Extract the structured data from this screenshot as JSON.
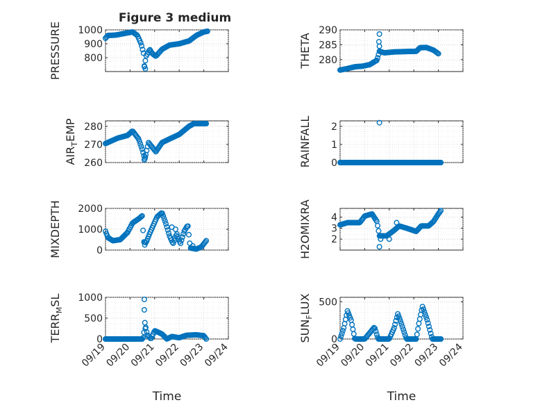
{
  "figure": {
    "title": "Figure 3 medium",
    "marker_color": "#0072BD"
  },
  "chart_data": [
    {
      "type": "scatter",
      "id": "pressure",
      "title": "Figure 3 medium",
      "ylabel": "PRESSURE",
      "ylabel_sub": "",
      "ylim": [
        700,
        1000
      ],
      "yticks": [
        800,
        900,
        1000
      ],
      "yticklabels": [
        "800",
        "900",
        "1000"
      ],
      "xlim": [
        0,
        5
      ],
      "xticks": [
        0,
        1,
        2,
        3,
        4,
        5
      ],
      "xticklabels": [
        "09/19",
        "09/20",
        "09/21",
        "09/22",
        "09/23",
        "09/24"
      ],
      "xlabel": "",
      "grid": true,
      "anchors": [
        [
          0,
          940
        ],
        [
          0.1,
          960
        ],
        [
          0.4,
          962
        ],
        [
          0.8,
          975
        ],
        [
          1.1,
          985
        ],
        [
          1.3,
          960
        ],
        [
          1.45,
          900
        ],
        [
          1.55,
          830
        ],
        [
          1.58,
          730
        ],
        [
          1.65,
          810
        ],
        [
          1.8,
          860
        ],
        [
          1.9,
          830
        ],
        [
          2.05,
          810
        ],
        [
          2.3,
          860
        ],
        [
          2.6,
          890
        ],
        [
          3.0,
          900
        ],
        [
          3.4,
          920
        ],
        [
          3.7,
          960
        ],
        [
          4.0,
          985
        ],
        [
          4.15,
          990
        ]
      ],
      "y_extra": [
        [
          1.58,
          740
        ],
        [
          1.62,
          720
        ]
      ]
    },
    {
      "type": "scatter",
      "id": "theta",
      "ylabel": "THETA",
      "ylabel_sub": "",
      "ylim": [
        276,
        290
      ],
      "yticks": [
        280,
        285,
        290
      ],
      "yticklabels": [
        "280",
        "285",
        "290"
      ],
      "xlim": [
        0,
        5
      ],
      "xticks": [
        0,
        1,
        2,
        3,
        4,
        5
      ],
      "xticklabels": [
        "09/19",
        "09/20",
        "09/21",
        "09/22",
        "09/23",
        "09/24"
      ],
      "xlabel": "",
      "grid": true,
      "anchors": [
        [
          0,
          276.5
        ],
        [
          0.3,
          277
        ],
        [
          0.6,
          277.6
        ],
        [
          0.9,
          277.8
        ],
        [
          1.2,
          278.3
        ],
        [
          1.5,
          279.8
        ],
        [
          1.6,
          282.8
        ],
        [
          1.8,
          282.3
        ],
        [
          2.2,
          282.6
        ],
        [
          2.6,
          282.7
        ],
        [
          3.1,
          282.8
        ],
        [
          3.25,
          284
        ],
        [
          3.5,
          284.1
        ],
        [
          3.8,
          283.2
        ],
        [
          4.0,
          282
        ]
      ],
      "y_extra": [
        [
          1.58,
          286
        ],
        [
          1.6,
          288.6
        ],
        [
          1.6,
          284.5
        ]
      ]
    },
    {
      "type": "scatter",
      "id": "airtemp",
      "ylabel": "AIR",
      "ylabel_sub": "T",
      "ylabel_rest": "EMP",
      "ylim": [
        260,
        283
      ],
      "yticks": [
        260,
        270,
        280
      ],
      "yticklabels": [
        "260",
        "270",
        "280"
      ],
      "xlim": [
        0,
        5
      ],
      "xticks": [
        0,
        1,
        2,
        3,
        4,
        5
      ],
      "xticklabels": [
        "09/19",
        "09/20",
        "09/21",
        "09/22",
        "09/23",
        "09/24"
      ],
      "xlabel": "",
      "grid": true,
      "anchors": [
        [
          0,
          270.5
        ],
        [
          0.5,
          273.5
        ],
        [
          0.9,
          275
        ],
        [
          1.1,
          277.5
        ],
        [
          1.35,
          273
        ],
        [
          1.5,
          267
        ],
        [
          1.6,
          262
        ],
        [
          1.75,
          271
        ],
        [
          2.05,
          266
        ],
        [
          2.3,
          271
        ],
        [
          2.6,
          273
        ],
        [
          3.0,
          275.5
        ],
        [
          3.4,
          280
        ],
        [
          3.6,
          281.5
        ],
        [
          4.1,
          281.5
        ]
      ],
      "y_extra": [
        [
          1.58,
          261.5
        ],
        [
          1.62,
          263
        ]
      ]
    },
    {
      "type": "scatter",
      "id": "rainfall",
      "ylabel": "RAINFALL",
      "ylabel_sub": "",
      "ylim": [
        0,
        2.3
      ],
      "yticks": [
        0,
        1,
        2
      ],
      "yticklabels": [
        "0",
        "1",
        "2"
      ],
      "xlim": [
        0,
        5
      ],
      "xticks": [
        0,
        1,
        2,
        3,
        4,
        5
      ],
      "xticklabels": [
        "09/19",
        "09/20",
        "09/21",
        "09/22",
        "09/23",
        "09/24"
      ],
      "xlabel": "",
      "grid": true,
      "anchors": [
        [
          0,
          0
        ],
        [
          4.1,
          0
        ]
      ],
      "y_extra": [
        [
          1.6,
          2.2
        ]
      ]
    },
    {
      "type": "scatter",
      "id": "mixdepth",
      "ylabel": "MIXDEPTH",
      "ylabel_sub": "",
      "ylim": [
        0,
        2000
      ],
      "yticks": [
        0,
        1000,
        2000
      ],
      "yticklabels": [
        "0",
        "1000",
        "2000"
      ],
      "xlim": [
        0,
        5
      ],
      "xticks": [
        0,
        1,
        2,
        3,
        4,
        5
      ],
      "xticklabels": [
        "09/19",
        "09/20",
        "09/21",
        "09/22",
        "09/23",
        "09/24"
      ],
      "xlabel": "",
      "grid": true,
      "anchors": [
        [
          0,
          900
        ],
        [
          0.1,
          600
        ],
        [
          0.3,
          450
        ],
        [
          0.6,
          500
        ],
        [
          0.9,
          850
        ],
        [
          1.1,
          1300
        ],
        [
          1.35,
          1500
        ],
        [
          1.5,
          1650
        ],
        [
          1.55,
          400
        ],
        [
          1.65,
          350
        ],
        [
          1.8,
          800
        ],
        [
          2.1,
          1600
        ],
        [
          2.3,
          1800
        ],
        [
          2.45,
          1300
        ],
        [
          2.6,
          700
        ],
        [
          2.75,
          300
        ],
        [
          2.9,
          800
        ],
        [
          3.05,
          300
        ],
        [
          3.2,
          900
        ],
        [
          3.35,
          1200
        ],
        [
          3.45,
          100
        ],
        [
          3.7,
          50
        ],
        [
          3.9,
          150
        ],
        [
          4.1,
          450
        ]
      ],
      "y_extra": [
        [
          2.7,
          1100
        ],
        [
          2.85,
          1000
        ],
        [
          3.55,
          200
        ],
        [
          1.6,
          250
        ]
      ]
    },
    {
      "type": "scatter",
      "id": "h2omixra",
      "ylabel": "H2OMIXRA",
      "ylabel_sub": "",
      "ylim": [
        1,
        4.8
      ],
      "yticks": [
        2,
        3,
        4
      ],
      "yticklabels": [
        "2",
        "3",
        "4"
      ],
      "xlim": [
        0,
        5
      ],
      "xticks": [
        0,
        1,
        2,
        3,
        4,
        5
      ],
      "xticklabels": [
        "09/19",
        "09/20",
        "09/21",
        "09/22",
        "09/23",
        "09/24"
      ],
      "xlabel": "",
      "grid": true,
      "anchors": [
        [
          0,
          3.3
        ],
        [
          0.3,
          3.5
        ],
        [
          0.8,
          3.5
        ],
        [
          1.0,
          4.1
        ],
        [
          1.3,
          4.3
        ],
        [
          1.5,
          3.6
        ],
        [
          1.6,
          2.3
        ],
        [
          1.9,
          2.3
        ],
        [
          2.2,
          2.8
        ],
        [
          2.4,
          3.2
        ],
        [
          2.7,
          3.0
        ],
        [
          3.1,
          2.7
        ],
        [
          3.3,
          3.2
        ],
        [
          3.6,
          3.2
        ],
        [
          3.8,
          3.6
        ],
        [
          4.0,
          4.3
        ],
        [
          4.1,
          4.6
        ]
      ],
      "y_extra": [
        [
          1.6,
          1.3
        ],
        [
          1.65,
          2.0
        ],
        [
          2.0,
          2.0
        ],
        [
          2.3,
          3.5
        ]
      ]
    },
    {
      "type": "scatter",
      "id": "terrmsl",
      "ylabel": "TERR",
      "ylabel_sub": "M",
      "ylabel_rest": "SL",
      "ylim": [
        0,
        1000
      ],
      "yticks": [
        0,
        500,
        1000
      ],
      "yticklabels": [
        "0",
        "500",
        "1000"
      ],
      "xlim": [
        0,
        5
      ],
      "xticks": [
        0,
        1,
        2,
        3,
        4,
        5
      ],
      "xticklabels": [
        "09/19",
        "09/20",
        "09/21",
        "09/22",
        "09/23",
        "09/24"
      ],
      "xlabel": "Time",
      "grid": true,
      "anchors": [
        [
          0,
          0
        ],
        [
          1.5,
          0
        ],
        [
          1.55,
          50
        ],
        [
          1.6,
          400
        ],
        [
          1.7,
          100
        ],
        [
          1.85,
          0
        ],
        [
          2.0,
          200
        ],
        [
          2.3,
          120
        ],
        [
          2.5,
          0
        ],
        [
          2.7,
          60
        ],
        [
          3.0,
          30
        ],
        [
          3.3,
          90
        ],
        [
          3.7,
          100
        ],
        [
          4.0,
          80
        ],
        [
          4.1,
          0
        ]
      ],
      "y_extra": [
        [
          1.58,
          950
        ],
        [
          1.58,
          700
        ],
        [
          1.62,
          250
        ]
      ]
    },
    {
      "type": "scatter",
      "id": "sunflux",
      "ylabel": "SUN",
      "ylabel_sub": "F",
      "ylabel_rest": "LUX",
      "ylim": [
        0,
        560
      ],
      "yticks": [
        0,
        500
      ],
      "yticklabels": [
        "0",
        "500"
      ],
      "xlim": [
        0,
        5
      ],
      "xticks": [
        0,
        1,
        2,
        3,
        4,
        5
      ],
      "xticklabels": [
        "09/19",
        "09/20",
        "09/21",
        "09/22",
        "09/23",
        "09/24"
      ],
      "xlabel": "Time",
      "grid": true,
      "anchors": [
        [
          0,
          0
        ],
        [
          0.15,
          150
        ],
        [
          0.3,
          380
        ],
        [
          0.45,
          250
        ],
        [
          0.6,
          0
        ],
        [
          1.0,
          0
        ],
        [
          1.25,
          100
        ],
        [
          1.4,
          160
        ],
        [
          1.55,
          0
        ],
        [
          2.0,
          0
        ],
        [
          2.2,
          150
        ],
        [
          2.35,
          340
        ],
        [
          2.5,
          200
        ],
        [
          2.7,
          0
        ],
        [
          3.1,
          0
        ],
        [
          3.2,
          200
        ],
        [
          3.35,
          440
        ],
        [
          3.55,
          250
        ],
        [
          3.75,
          0
        ],
        [
          4.1,
          0
        ]
      ],
      "y_extra": []
    }
  ]
}
